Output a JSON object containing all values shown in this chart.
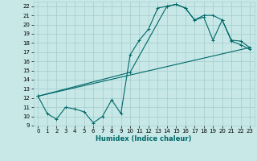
{
  "xlabel": "Humidex (Indice chaleur)",
  "bg_color": "#c8e8e8",
  "grid_color": "#a8d0d0",
  "line_color": "#006868",
  "xlim": [
    -0.5,
    23.5
  ],
  "ylim": [
    9,
    22.5
  ],
  "yticks": [
    9,
    10,
    11,
    12,
    13,
    14,
    15,
    16,
    17,
    18,
    19,
    20,
    21,
    22
  ],
  "xticks": [
    0,
    1,
    2,
    3,
    4,
    5,
    6,
    7,
    8,
    9,
    10,
    11,
    12,
    13,
    14,
    15,
    16,
    17,
    18,
    19,
    20,
    21,
    22,
    23
  ],
  "line1_x": [
    0,
    1,
    2,
    3,
    4,
    5,
    6,
    7,
    8,
    9,
    10,
    11,
    12,
    13,
    14,
    15,
    16,
    17,
    18,
    19,
    20,
    21,
    22,
    23
  ],
  "line1_y": [
    12.2,
    10.3,
    9.7,
    11.0,
    10.8,
    10.5,
    9.3,
    10.0,
    11.8,
    10.3,
    16.7,
    18.3,
    19.5,
    21.8,
    22.0,
    22.2,
    21.8,
    20.5,
    20.8,
    18.3,
    20.5,
    18.2,
    17.8,
    17.3
  ],
  "line2_x": [
    0,
    10,
    14,
    15,
    16,
    17,
    18,
    19,
    20,
    21,
    22,
    23
  ],
  "line2_y": [
    12.2,
    14.8,
    22.0,
    22.2,
    21.8,
    20.5,
    21.0,
    21.0,
    20.5,
    18.3,
    18.2,
    17.5
  ],
  "line3_x": [
    0,
    23
  ],
  "line3_y": [
    12.2,
    17.5
  ]
}
